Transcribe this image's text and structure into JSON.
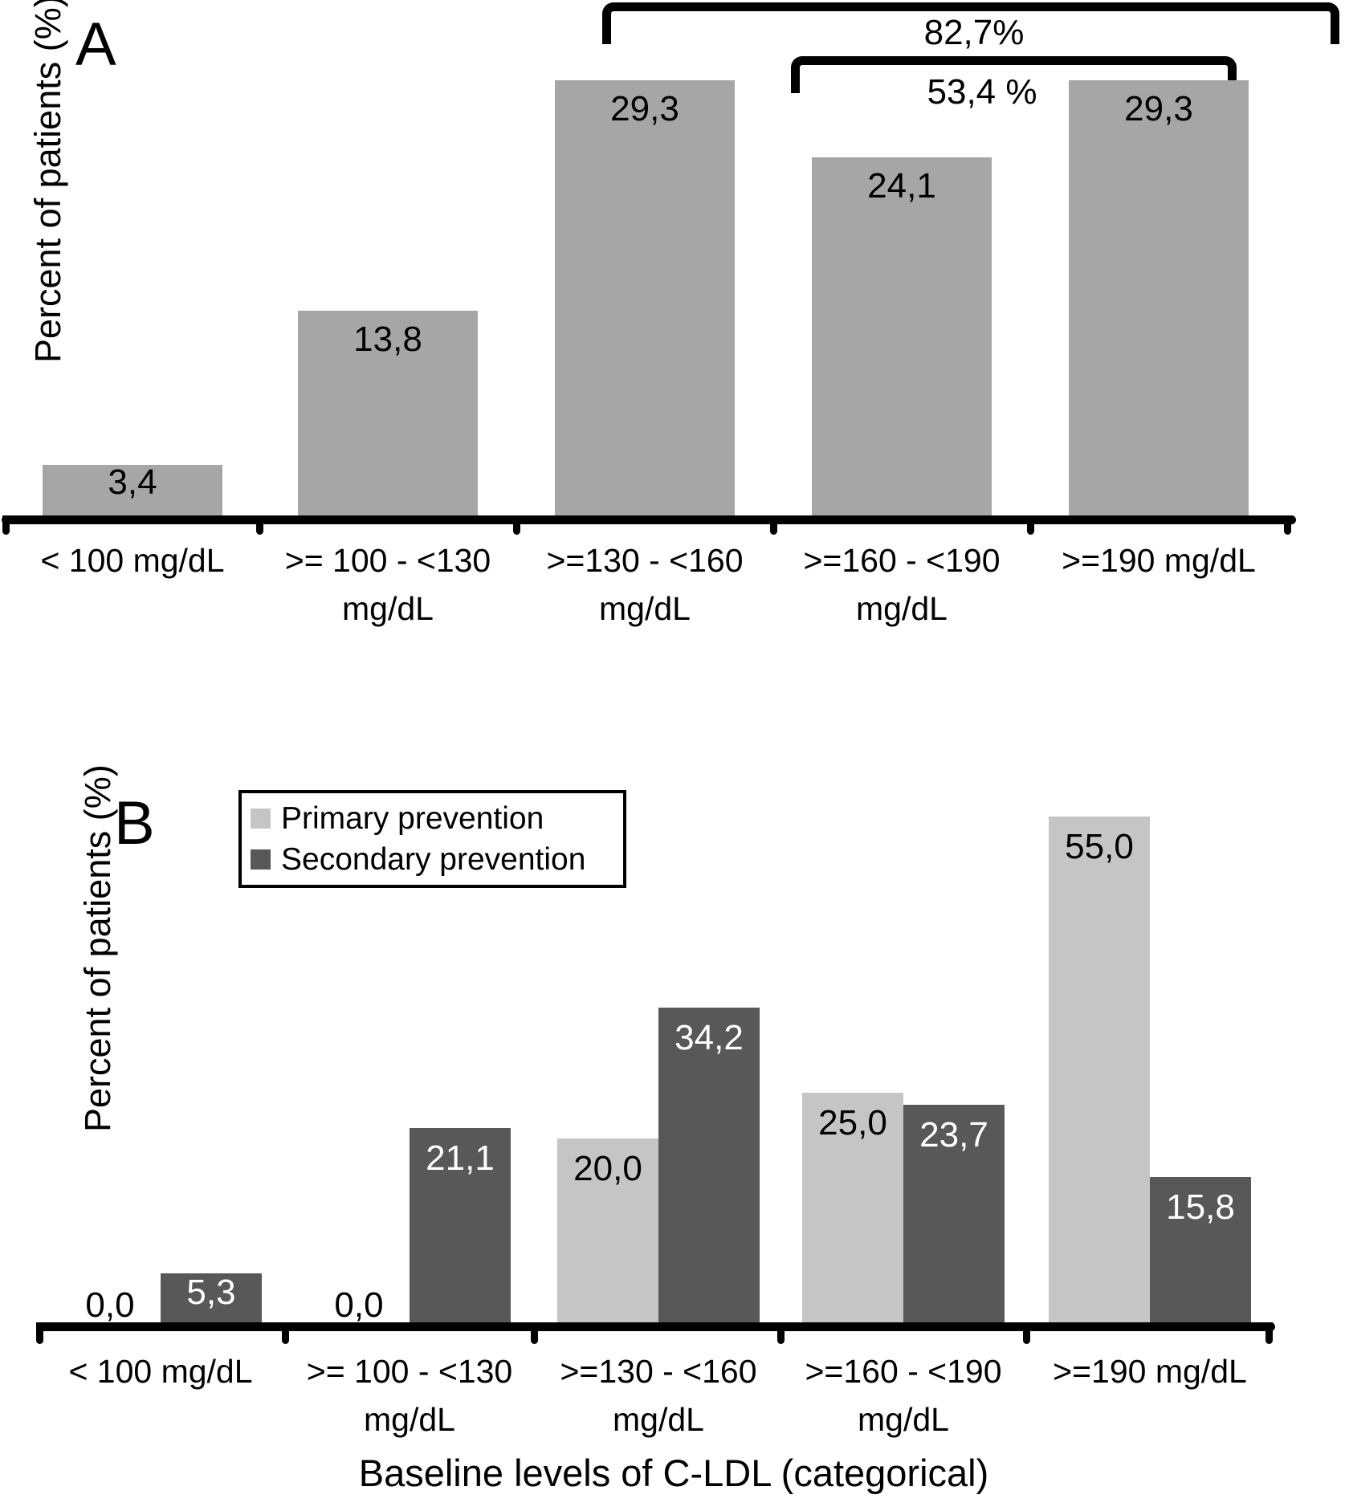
{
  "figure": {
    "x_axis_title": "Baseline levels of C-LDL (categorical)",
    "background_color": "#ffffff",
    "axis_color": "#000000",
    "text_color": "#000000"
  },
  "chart_data": [
    {
      "panel": "A",
      "type": "bar",
      "ylabel": "Percent of patients (%)",
      "xlabel": "",
      "categories": [
        [
          "< 100 mg/dL"
        ],
        [
          ">= 100 - <130",
          "mg/dL"
        ],
        [
          ">=130 - <160",
          "mg/dL"
        ],
        [
          ">=160 - <190",
          "mg/dL"
        ],
        [
          ">=190 mg/dL"
        ]
      ],
      "values": [
        3.4,
        13.8,
        29.3,
        24.1,
        29.3
      ],
      "value_labels": [
        "3,4",
        "13,8",
        "29,3",
        "24,1",
        "29,3"
      ],
      "bar_color": "#a6a6a6",
      "value_label_color": "#000000",
      "ylim": [
        0,
        30
      ],
      "grid": false,
      "annotations": [
        {
          "label": "82,7%",
          "spans_categories": [
            3,
            5
          ]
        },
        {
          "label": "53,4 %",
          "spans_categories": [
            4,
            5
          ]
        }
      ]
    },
    {
      "panel": "B",
      "type": "bar",
      "ylabel": "Percent of patients (%)",
      "xlabel": "Baseline levels of C-LDL (categorical)",
      "categories": [
        [
          "< 100 mg/dL"
        ],
        [
          ">= 100 - <130",
          "mg/dL"
        ],
        [
          ">=130 - <160",
          "mg/dL"
        ],
        [
          ">=160 - <190",
          "mg/dL"
        ],
        [
          ">=190 mg/dL"
        ]
      ],
      "series": [
        {
          "name": "Primary prevention",
          "values": [
            0.0,
            0.0,
            20.0,
            25.0,
            55.0
          ],
          "value_labels": [
            "0,0",
            "0,0",
            "20,0",
            "25,0",
            "55,0"
          ],
          "color": "#c5c5c5",
          "value_label_color": "#000000"
        },
        {
          "name": "Secondary prevention",
          "values": [
            5.3,
            21.1,
            34.2,
            23.7,
            15.8
          ],
          "value_labels": [
            "5,3",
            "21,1",
            "34,2",
            "23,7",
            "15,8"
          ],
          "color": "#585858",
          "value_label_color": "#ffffff"
        }
      ],
      "ylim": [
        0,
        57
      ],
      "grid": false,
      "legend_position": "top-left-inside"
    }
  ]
}
